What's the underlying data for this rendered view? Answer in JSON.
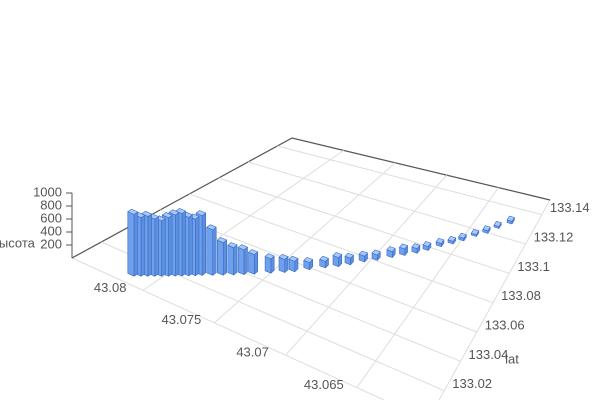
{
  "chart_data": {
    "type": "bar3D",
    "y_label": "lat",
    "z_label": "высота",
    "xlim": [
      43.06,
      43.085
    ],
    "ylim": [
      133.0,
      133.15
    ],
    "zlim": [
      0,
      1000
    ],
    "xticks": [
      43.065,
      43.07,
      43.075,
      43.08
    ],
    "yticks": [
      133.02,
      133.04,
      133.06,
      133.08,
      133.1,
      133.12,
      133.14
    ],
    "zticks": [
      200,
      400,
      600,
      800,
      1000
    ],
    "grid": true,
    "color": "#6fa0ee",
    "x": [
      43.0815,
      43.0812,
      43.0809,
      43.0806,
      43.0803,
      43.08,
      43.0797,
      43.0794,
      43.0791,
      43.0788,
      43.0785,
      43.078,
      43.0775,
      43.077,
      43.0765,
      43.076,
      43.0752,
      43.0745,
      43.074,
      43.0733,
      43.0725,
      43.0718,
      43.0712,
      43.0705,
      43.0698,
      43.069,
      43.0683,
      43.0676,
      43.067,
      43.0663,
      43.0656,
      43.065,
      43.0643,
      43.0636,
      43.063,
      43.0622
    ],
    "y": [
      133.008,
      133.01,
      133.012,
      133.014,
      133.016,
      133.018,
      133.02,
      133.022,
      133.024,
      133.026,
      133.028,
      133.031,
      133.034,
      133.037,
      133.04,
      133.043,
      133.048,
      133.052,
      133.055,
      133.06,
      133.065,
      133.069,
      133.073,
      133.078,
      133.082,
      133.087,
      133.091,
      133.095,
      133.099,
      133.104,
      133.108,
      133.112,
      133.117,
      133.121,
      133.126,
      133.131
    ],
    "z": [
      950,
      900,
      920,
      880,
      850,
      900,
      940,
      960,
      900,
      870,
      920,
      700,
      500,
      420,
      380,
      300,
      220,
      200,
      160,
      110,
      100,
      140,
      100,
      90,
      80,
      90,
      100,
      70,
      60,
      50,
      40,
      40,
      30,
      40,
      30,
      40
    ]
  }
}
